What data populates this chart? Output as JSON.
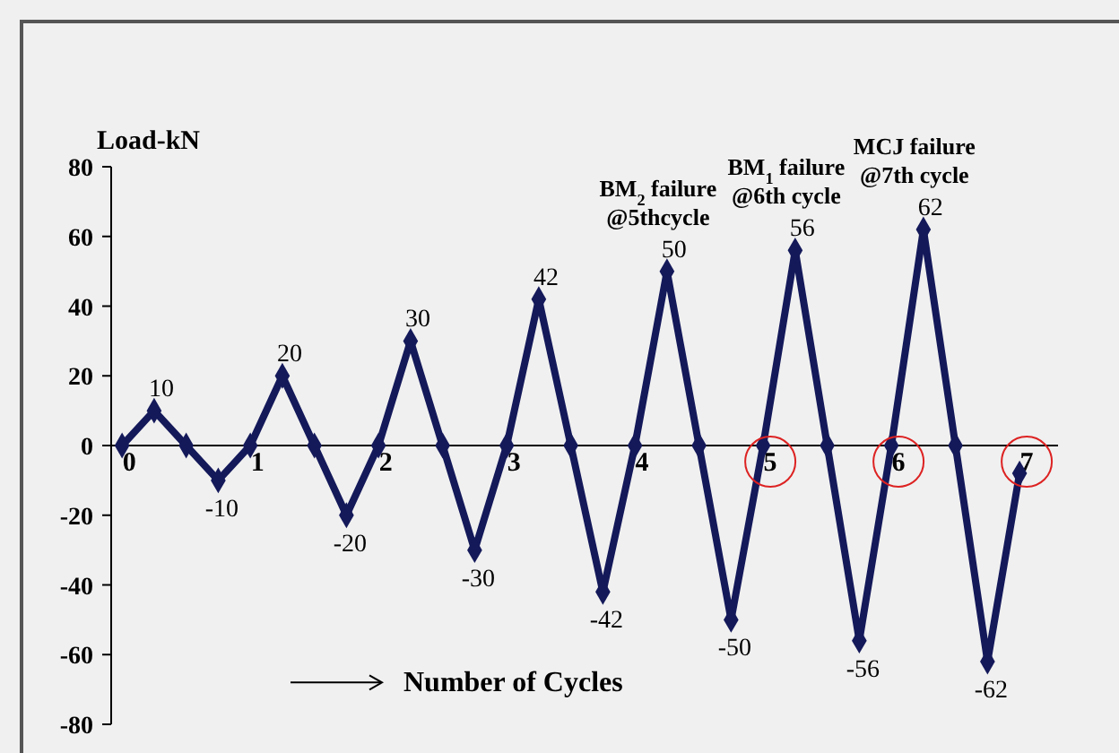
{
  "chart_data": {
    "type": "line",
    "ylabel": "Load-kN",
    "xlabel": "Number of Cycles",
    "x": [
      0,
      0.25,
      0.5,
      0.75,
      1,
      1.25,
      1.5,
      1.75,
      2,
      2.25,
      2.5,
      2.75,
      3,
      3.25,
      3.5,
      3.75,
      4,
      4.25,
      4.5,
      4.75,
      5,
      5.25,
      5.5,
      5.75,
      6,
      6.25,
      6.5,
      6.75,
      7
    ],
    "series": [
      {
        "color": "#14195a",
        "values": [
          0,
          10,
          0,
          -10,
          0,
          20,
          0,
          -20,
          0,
          30,
          0,
          -30,
          0,
          42,
          0,
          -42,
          0,
          50,
          0,
          -50,
          0,
          56,
          0,
          -56,
          0,
          62,
          0,
          -62,
          -8
        ],
        "value_labels": [
          null,
          "10",
          null,
          "-10",
          null,
          "20",
          null,
          "-20",
          null,
          "30",
          null,
          "-30",
          null,
          "42",
          null,
          "-42",
          null,
          "50",
          null,
          "-50",
          null,
          "56",
          null,
          "-56",
          null,
          "62",
          null,
          "-62",
          null
        ]
      }
    ],
    "xlim": [
      -0.085,
      7.3
    ],
    "xticks": [
      0,
      1,
      2,
      3,
      4,
      5,
      6,
      7
    ],
    "ylim": [
      -80,
      80
    ],
    "yticks": [
      -80,
      -60,
      -40,
      -20,
      0,
      20,
      40,
      60,
      80
    ],
    "grid": false,
    "marker": "diamond",
    "line_style": "solid",
    "annotations": [
      {
        "text": "BM$_{2}$ failure\n@5thcycle",
        "x": 4.25,
        "y": 50
      },
      {
        "text": "BM$_{1}$ failure\n@6th cycle",
        "x": 5.25,
        "y": 56
      },
      {
        "text": "MCJ failure\n@7th cycle",
        "x": 6.25,
        "y": 62
      }
    ]
  }
}
